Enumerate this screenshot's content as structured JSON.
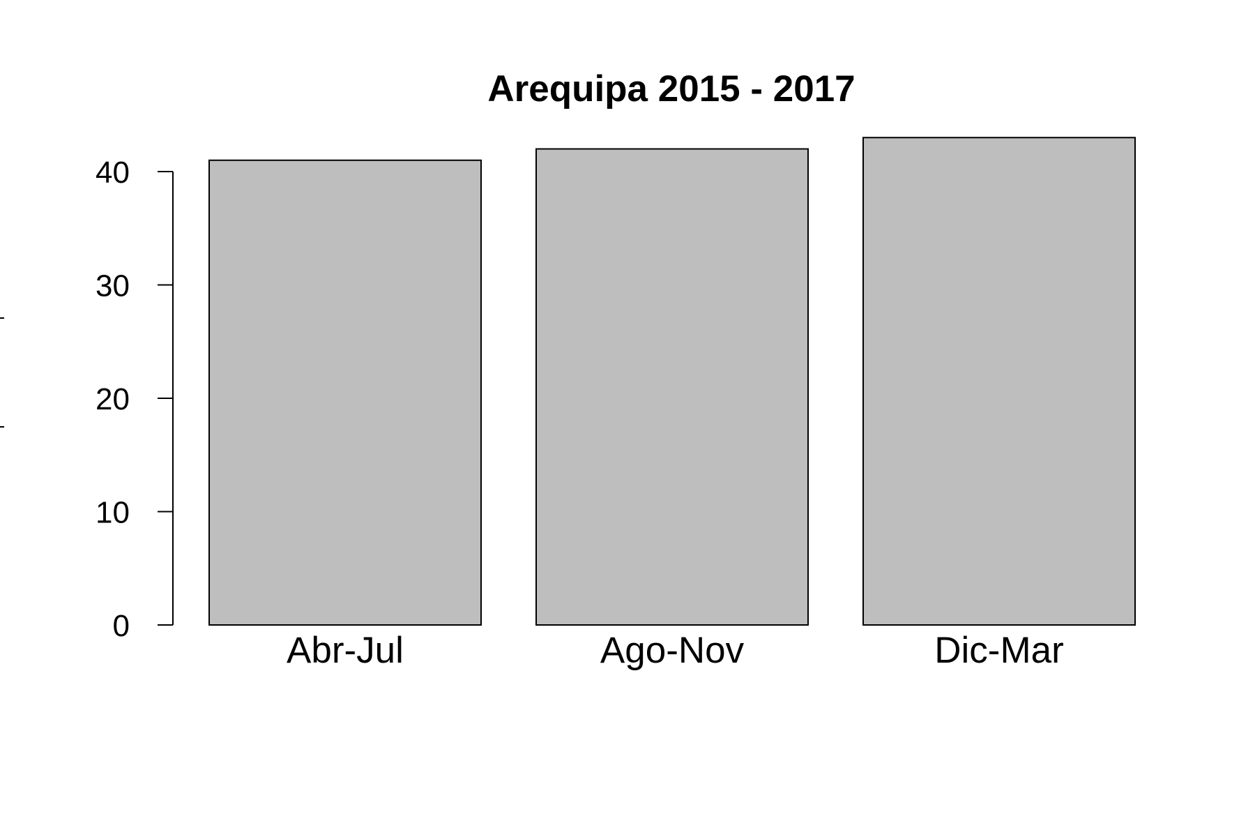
{
  "chart_data": {
    "type": "bar",
    "title": "Arequipa 2015 - 2017",
    "categories": [
      "Abr-Jul",
      "Ago-Nov",
      "Dic-Mar"
    ],
    "values": [
      41,
      42,
      43
    ],
    "xlabel": "",
    "ylabel": "",
    "ylim": [
      0,
      40
    ],
    "yticks": [
      0,
      10,
      20,
      30,
      40
    ],
    "grid": false,
    "legend": "none",
    "bar_color": "#bebebe",
    "bar_border_color": "#000000"
  }
}
